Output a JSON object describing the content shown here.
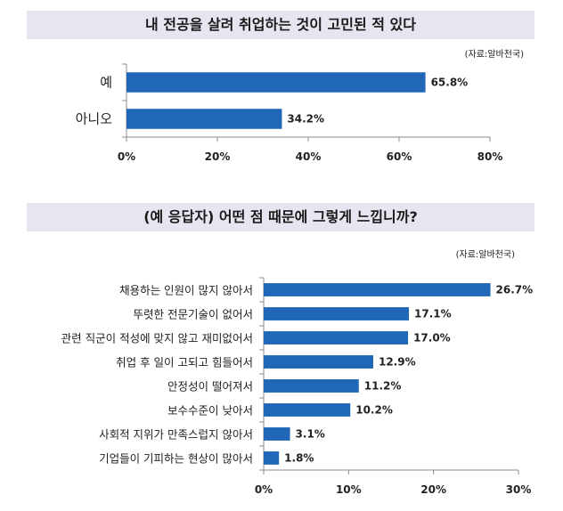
{
  "chart_data": [
    {
      "type": "bar",
      "orientation": "horizontal",
      "title": "내 전공을 살려 취업하는 것이 고민된 적 있다",
      "source": "(자료:알바천국)",
      "categories": [
        "예",
        "아니오"
      ],
      "values": [
        65.8,
        34.2
      ],
      "value_labels": [
        "65.8%",
        "34.2%"
      ],
      "xlim": [
        0,
        80
      ],
      "xticks": [
        0,
        20,
        40,
        60,
        80
      ],
      "xtick_labels": [
        "0%",
        "20%",
        "40%",
        "60%",
        "80%"
      ],
      "xlabel": "",
      "ylabel": "",
      "grid": false
    },
    {
      "type": "bar",
      "orientation": "horizontal",
      "title": "(예 응답자) 어떤 점 때문에 그렇게 느낍니까?",
      "source": "(자료:알바천국)",
      "categories": [
        "채용하는 인원이 많지 않아서",
        "뚜렷한 전문기술이 없어서",
        "관련 직군이 적성에 맞지 않고 재미없어서",
        "취업 후 일이 고되고 힘들어서",
        "안정성이 떨어져서",
        "보수수준이 낮아서",
        "사회적 지위가 만족스럽지 않아서",
        "기업들이 기피하는 현상이 많아서"
      ],
      "values": [
        26.7,
        17.1,
        17.0,
        12.9,
        11.2,
        10.2,
        3.1,
        1.8
      ],
      "value_labels": [
        "26.7%",
        "17.1%",
        "17.0%",
        "12.9%",
        "11.2%",
        "10.2%",
        "3.1%",
        "1.8%"
      ],
      "xlim": [
        0,
        30
      ],
      "xticks": [
        0,
        10,
        20,
        30
      ],
      "xtick_labels": [
        "0%",
        "10%",
        "20%",
        "30%"
      ],
      "xlabel": "",
      "ylabel": "",
      "grid": false
    }
  ],
  "colors": {
    "bar": "#2167b8",
    "axis": "#8c8c8c",
    "banner": "#e7e5ef"
  }
}
